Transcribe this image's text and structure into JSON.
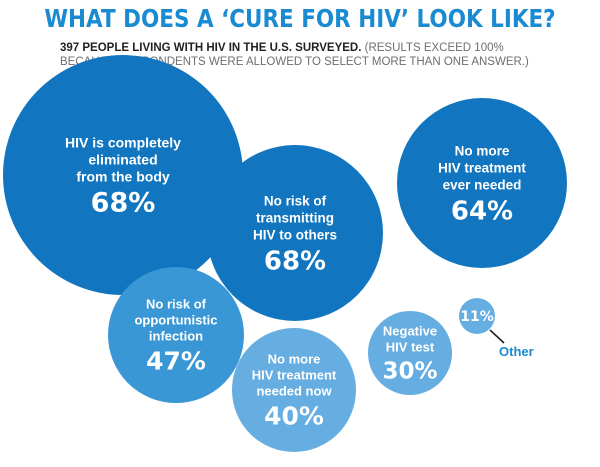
{
  "header": {
    "title": "WHAT DOES A ‘CURE FOR HIV’ LOOK LIKE?",
    "subtitle_bold": "397 PEOPLE LIVING WITH HIV IN THE U.S. SURVEYED.",
    "subtitle_rest": "(RESULTS EXCEED 100% BECAUSE RESPONDENTS WERE ALLOWED TO SELECT MORE THAN ONE ANSWER.)"
  },
  "colors": {
    "title": "#1a8bd0",
    "dark_blue": "#1176bf",
    "mid_blue": "#3a97d6",
    "light_blue": "#66aee1",
    "other_label": "#1a8bd0"
  },
  "chart_data": {
    "type": "bubble",
    "categories": [
      "HIV is completely eliminated from the body",
      "No risk of transmitting HIV to others",
      "No more HIV treatment ever needed",
      "No risk of opportunistic infection",
      "No more HIV treatment needed now",
      "Negative HIV test",
      "Other"
    ],
    "values": [
      68,
      68,
      64,
      47,
      40,
      30,
      11
    ],
    "labels": [
      [
        "HIV is completely",
        "eliminated",
        "from the body"
      ],
      [
        "No risk of",
        "transmitting",
        "HIV to others"
      ],
      [
        "No more",
        "HIV treatment",
        "ever needed"
      ],
      [
        "No risk of",
        "opportunistic",
        "infection"
      ],
      [
        "No more",
        "HIV treatment",
        "needed now"
      ],
      [
        "Negative",
        "HIV test"
      ],
      []
    ],
    "value_labels": [
      "68%",
      "68%",
      "64%",
      "47%",
      "40%",
      "30%",
      "11%"
    ],
    "external_label": {
      "index": 6,
      "text": "Other"
    },
    "shades": [
      "dark_blue",
      "dark_blue",
      "dark_blue",
      "mid_blue",
      "light_blue",
      "light_blue",
      "light_blue"
    ]
  }
}
